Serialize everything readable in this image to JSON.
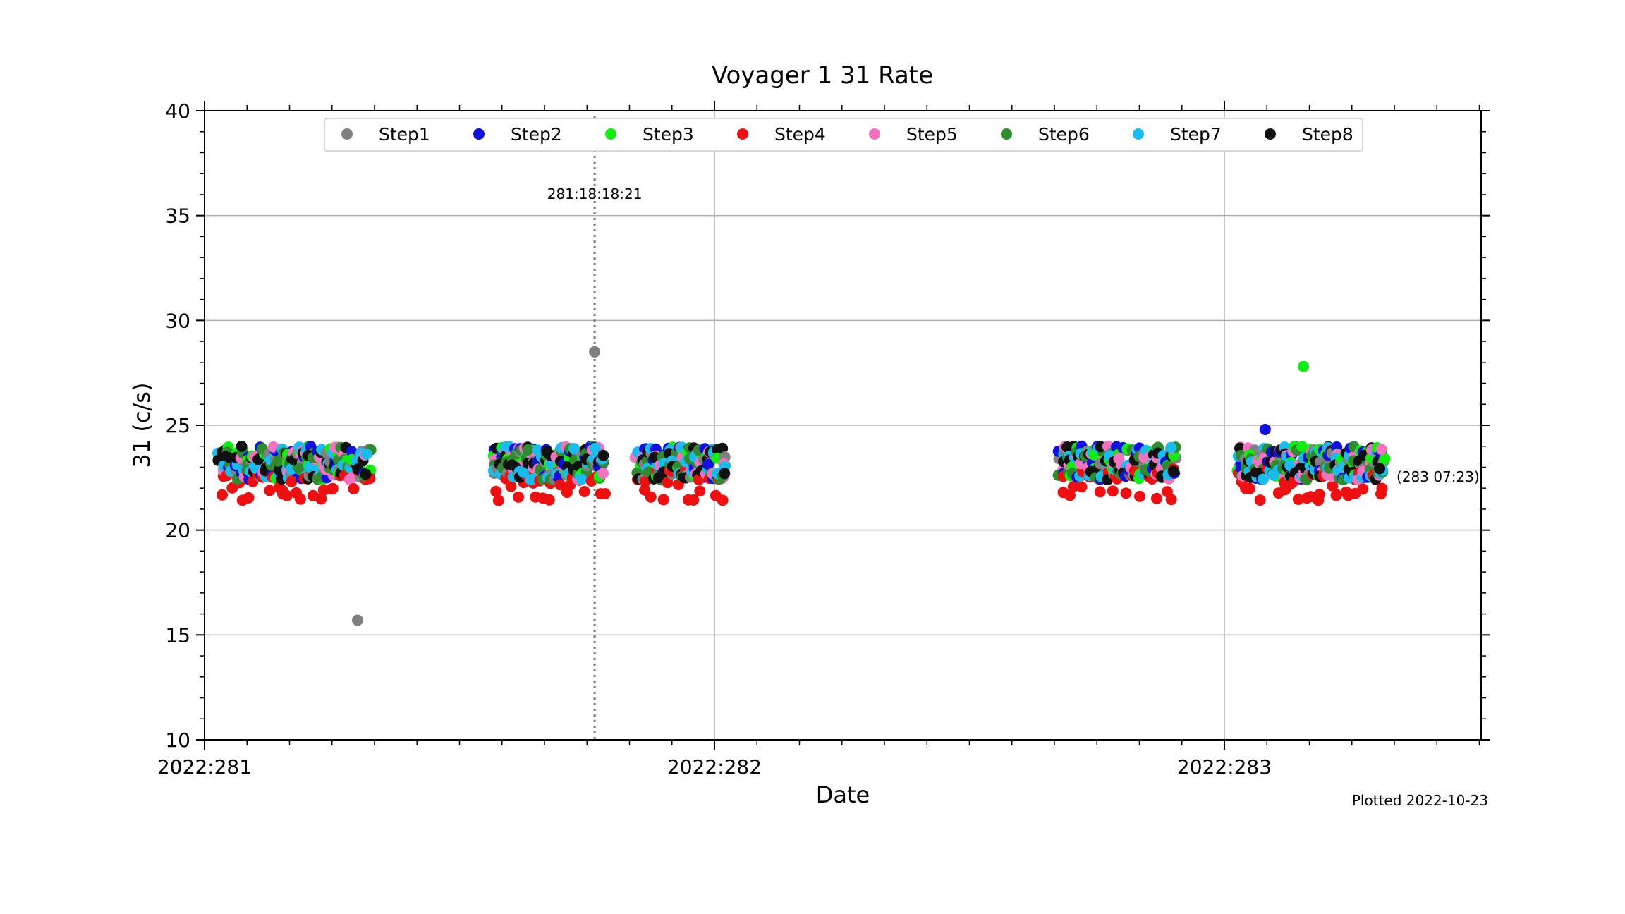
{
  "chart_data": {
    "type": "scatter",
    "title": "Voyager 1  31 Rate",
    "xlabel": "Date",
    "ylabel": "31 (c/s)",
    "ylim": [
      10,
      40
    ],
    "yticks": [
      "10",
      "15",
      "20",
      "25",
      "30",
      "35",
      "40"
    ],
    "xlim": [
      0,
      2.5
    ],
    "xticks": [
      {
        "value": 0,
        "label": "2022:281"
      },
      {
        "value": 1,
        "label": "2022:282"
      },
      {
        "value": 2,
        "label": "2022:283"
      }
    ],
    "grid": true,
    "legend_position": "top",
    "annotation": {
      "x": 0.765,
      "label": "281:18:18:21"
    },
    "end_label": "(283 07:23)",
    "plotted_label": "Plotted 2022-10-23",
    "series": [
      {
        "name": "Step1",
        "color": "#808080"
      },
      {
        "name": "Step2",
        "color": "#1010e0"
      },
      {
        "name": "Step3",
        "color": "#10ee10"
      },
      {
        "name": "Step4",
        "color": "#ee1010"
      },
      {
        "name": "Step5",
        "color": "#f472c0"
      },
      {
        "name": "Step6",
        "color": "#2e8b2e"
      },
      {
        "name": "Step7",
        "color": "#18bced"
      },
      {
        "name": "Step8",
        "color": "#111111"
      }
    ],
    "clusters": [
      [
        0.03,
        0.32
      ],
      [
        0.57,
        0.78
      ],
      [
        0.85,
        1.02
      ],
      [
        1.68,
        1.9
      ],
      [
        2.03,
        2.31
      ]
    ],
    "outliers": [
      {
        "series": 0,
        "x": 0.3,
        "y": 15.7
      },
      {
        "series": 0,
        "x": 0.765,
        "y": 28.5
      },
      {
        "series": 2,
        "x": 2.155,
        "y": 27.8
      },
      {
        "series": 1,
        "x": 2.08,
        "y": 24.8
      }
    ]
  }
}
